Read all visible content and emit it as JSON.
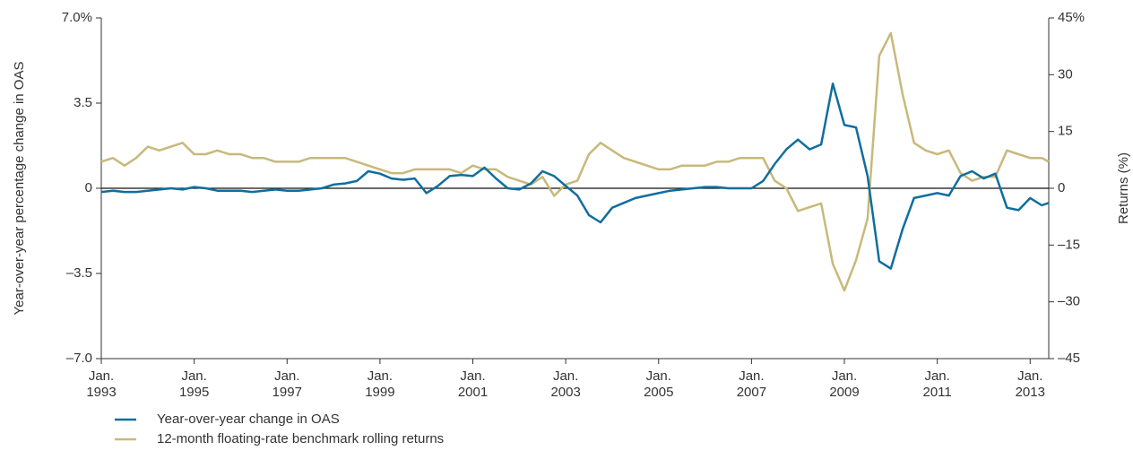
{
  "chart_data": {
    "type": "line",
    "y_label": "Year-over-year percentage change in OAS",
    "y2_label": "Returns (%)",
    "x": [
      1993,
      1993.25,
      1993.5,
      1993.75,
      1994,
      1994.25,
      1994.5,
      1994.75,
      1995,
      1995.25,
      1995.5,
      1995.75,
      1996,
      1996.25,
      1996.5,
      1996.75,
      1997,
      1997.25,
      1997.5,
      1997.75,
      1998,
      1998.25,
      1998.5,
      1998.75,
      1999,
      1999.25,
      1999.5,
      1999.75,
      2000,
      2000.25,
      2000.5,
      2000.75,
      2001,
      2001.25,
      2001.5,
      2001.75,
      2002,
      2002.25,
      2002.5,
      2002.75,
      2003,
      2003.25,
      2003.5,
      2003.75,
      2004,
      2004.25,
      2004.5,
      2004.75,
      2005,
      2005.25,
      2005.5,
      2005.75,
      2006,
      2006.25,
      2006.5,
      2006.75,
      2007,
      2007.25,
      2007.5,
      2007.75,
      2008,
      2008.25,
      2008.5,
      2008.75,
      2009,
      2009.25,
      2009.5,
      2009.75,
      2010,
      2010.25,
      2010.5,
      2010.75,
      2011,
      2011.25,
      2011.5,
      2011.75,
      2012,
      2012.25,
      2012.5,
      2012.75,
      2013,
      2013.25,
      2013.4
    ],
    "series": [
      {
        "name": "Year-over-year change in OAS",
        "color": "#0f6e9e",
        "axis": "y",
        "values": [
          -0.15,
          -0.1,
          -0.15,
          -0.15,
          -0.1,
          -0.05,
          0,
          -0.05,
          0.05,
          0,
          -0.1,
          -0.1,
          -0.1,
          -0.15,
          -0.1,
          -0.05,
          -0.1,
          -0.1,
          -0.05,
          0,
          0.15,
          0.2,
          0.3,
          0.7,
          0.6,
          0.4,
          0.35,
          0.4,
          -0.2,
          0.1,
          0.5,
          0.55,
          0.5,
          0.85,
          0.4,
          0,
          -0.05,
          0.2,
          0.7,
          0.5,
          0.1,
          -0.3,
          -1.1,
          -1.4,
          -0.8,
          -0.6,
          -0.4,
          -0.3,
          -0.2,
          -0.1,
          -0.05,
          0,
          0.05,
          0.05,
          0,
          0,
          0,
          0.3,
          1.0,
          1.6,
          2.0,
          1.6,
          1.8,
          4.3,
          2.6,
          2.5,
          0.5,
          -3.0,
          -3.3,
          -1.7,
          -0.4,
          -0.3,
          -0.2,
          -0.3,
          0.5,
          0.7,
          0.4,
          0.6,
          -0.8,
          -0.9,
          -0.4,
          -0.7,
          -0.6
        ]
      },
      {
        "name": "12-month floating-rate benchmark rolling returns",
        "color": "#c8b97a",
        "axis": "y2",
        "values": [
          7,
          8,
          6,
          8,
          11,
          10,
          11,
          12,
          9,
          9,
          10,
          9,
          9,
          8,
          8,
          7,
          7,
          7,
          8,
          8,
          8,
          8,
          7,
          6,
          5,
          4,
          4,
          5,
          5,
          5,
          5,
          4,
          6,
          5,
          5,
          3,
          2,
          1,
          3,
          -2,
          1,
          2,
          9,
          12,
          10,
          8,
          7,
          6,
          5,
          5,
          6,
          6,
          6,
          7,
          7,
          8,
          8,
          8,
          2,
          0,
          -6,
          -5,
          -4,
          -20,
          -27,
          -19,
          -8,
          35,
          41,
          25,
          12,
          10,
          9,
          10,
          4,
          2,
          3,
          3,
          10,
          9,
          8,
          8,
          7
        ]
      }
    ],
    "xlim": [
      1993,
      2013.4
    ],
    "xticks": [
      {
        "value": 1993,
        "label": "Jan.\n1993"
      },
      {
        "value": 1995,
        "label": "Jan.\n1995"
      },
      {
        "value": 1997,
        "label": "Jan.\n1997"
      },
      {
        "value": 1999,
        "label": "Jan.\n1999"
      },
      {
        "value": 2001,
        "label": "Jan.\n2001"
      },
      {
        "value": 2003,
        "label": "Jan.\n2003"
      },
      {
        "value": 2005,
        "label": "Jan.\n2005"
      },
      {
        "value": 2007,
        "label": "Jan.\n2007"
      },
      {
        "value": 2009,
        "label": "Jan.\n2009"
      },
      {
        "value": 2011,
        "label": "Jan.\n2011"
      },
      {
        "value": 2013,
        "label": "Jan.\n2013"
      }
    ],
    "ylim": [
      -7,
      7
    ],
    "yticks": [
      {
        "value": -7,
        "label": "–7.0"
      },
      {
        "value": -3.5,
        "label": "–3.5"
      },
      0,
      3.5,
      {
        "value": 7,
        "label": "7.0%"
      }
    ],
    "y2lim": [
      -45,
      45
    ],
    "y2ticks": [
      {
        "value": -45,
        "label": "–45"
      },
      {
        "value": -30,
        "label": "–30"
      },
      {
        "value": -15,
        "label": "–15"
      },
      0,
      15,
      30,
      {
        "value": 45,
        "label": "45%"
      }
    ]
  }
}
